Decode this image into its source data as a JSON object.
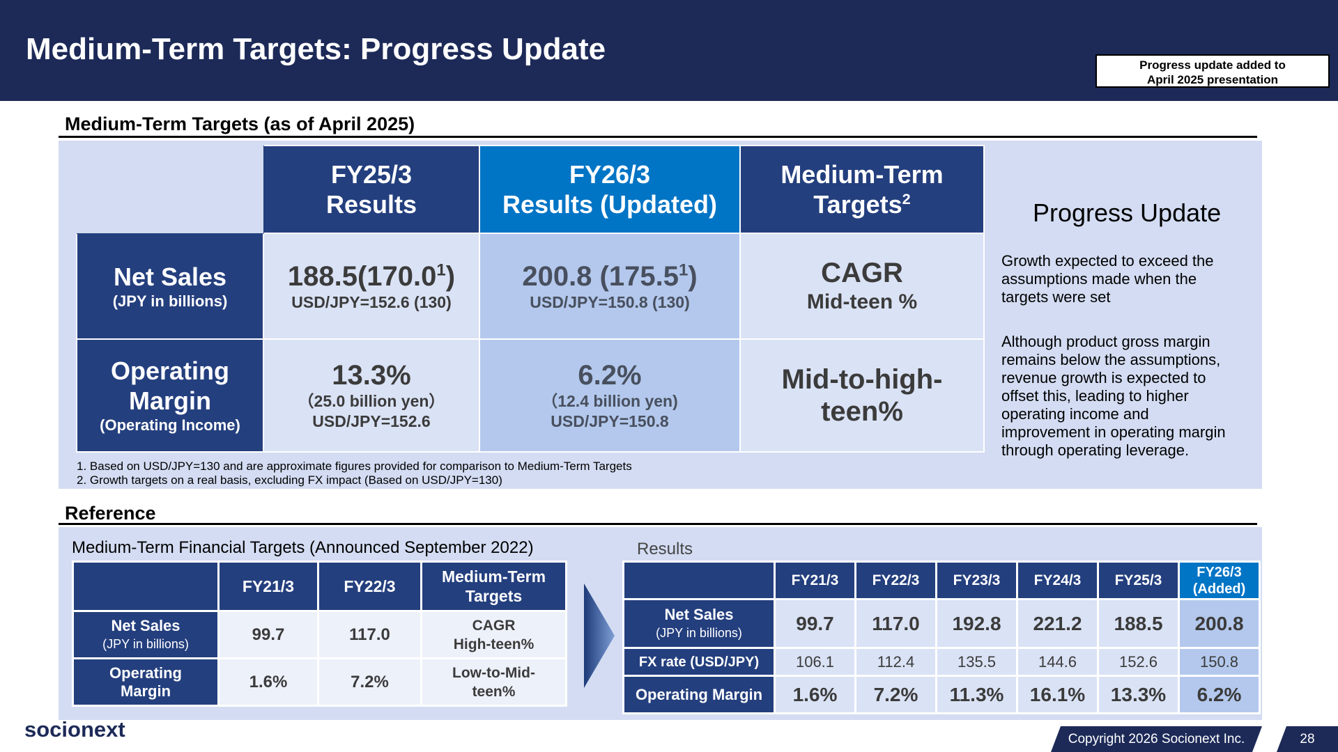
{
  "header": {
    "title": "Medium-Term Targets: Progress Update",
    "note": [
      "Progress update added to",
      "April 2025 presentation"
    ]
  },
  "section1": {
    "title": "Medium-Term Targets (as of April 2025)",
    "columns": [
      [
        "FY25/3",
        "Results"
      ],
      [
        "FY26/3",
        "Results (Updated)"
      ],
      [
        "Medium-Term",
        "Targets"
      ]
    ],
    "col3_sup": "2",
    "rows": {
      "net_sales": {
        "label": "Net Sales",
        "sublabel": "(JPY in billions)",
        "fy25_value": "188.5(170.0",
        "fy25_sup": "1",
        "fy25_close": ")",
        "fy25_fx": "USD/JPY=152.6 (130)",
        "fy26_value": "200.8 (175.5",
        "fy26_sup": "1",
        "fy26_close": ")",
        "fy26_fx": "USD/JPY=150.8 (130)",
        "target_line1": "CAGR",
        "target_line2": "Mid-teen %"
      },
      "op_margin": {
        "label_line1": "Operating",
        "label_line2": "Margin",
        "sublabel": "(Operating Income)",
        "fy25_value": "13.3%",
        "fy25_income": "（25.0 billion yen）",
        "fy25_fx": "USD/JPY=152.6",
        "fy26_value": "6.2%",
        "fy26_income": "（12.4 billion yen)",
        "fy26_fx": "USD/JPY=150.8",
        "target_line1": "Mid-to-high-",
        "target_line2": "teen%"
      }
    },
    "footnotes": [
      "1. Based on USD/JPY=130 and are approximate figures provided for comparison to Medium-Term Targets",
      "2. Growth targets on a real basis, excluding FX impact (Based on USD/JPY=130)"
    ],
    "progress": {
      "title": "Progress Update",
      "para1": "Growth expected to exceed the assumptions made when the targets were set",
      "para2": "Although product gross margin remains below the assumptions, revenue growth is expected to offset this, leading to higher operating income and improvement in operating margin through operating leverage."
    }
  },
  "section2": {
    "title": "Reference",
    "left": {
      "caption": "Medium-Term Financial Targets (Announced September 2022)",
      "headers": [
        "FY21/3",
        "FY22/3",
        "Medium-Term",
        "Targets"
      ],
      "net_sales_label": "Net Sales",
      "net_sales_sub": "(JPY in billions)",
      "net_sales": [
        "99.7",
        "117.0"
      ],
      "net_sales_target": [
        "CAGR",
        "High-teen%"
      ],
      "op_label": [
        "Operating",
        "Margin"
      ],
      "op_margin": [
        "1.6%",
        "7.2%"
      ],
      "op_target": [
        "Low-to-Mid-",
        "teen%"
      ]
    },
    "right": {
      "caption": "Results",
      "headers": [
        "FY21/3",
        "FY22/3",
        "FY23/3",
        "FY24/3",
        "FY25/3"
      ],
      "added_header": [
        "FY26/3",
        "(Added)"
      ],
      "net_sales_label": "Net Sales",
      "net_sales_sub": "(JPY in billions)",
      "net_sales": [
        "99.7",
        "117.0",
        "192.8",
        "221.2",
        "188.5",
        "200.8"
      ],
      "fx_label": "FX rate (USD/JPY)",
      "fx": [
        "106.1",
        "112.4",
        "135.5",
        "144.6",
        "152.6",
        "150.8"
      ],
      "op_label": "Operating Margin",
      "op_margin": [
        "1.6%",
        "7.2%",
        "11.3%",
        "16.1%",
        "13.3%",
        "6.2%"
      ]
    }
  },
  "footer": {
    "logo": "socionext",
    "copyright": "Copyright 2026 Socionext Inc.",
    "page": "28"
  }
}
